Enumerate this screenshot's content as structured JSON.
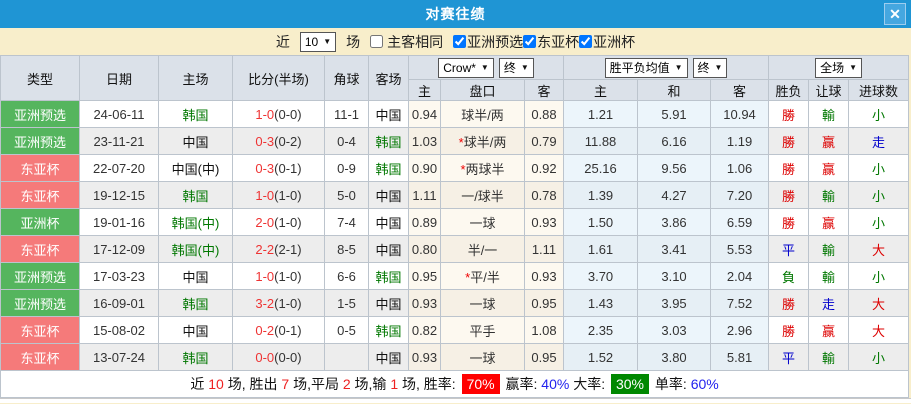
{
  "window": {
    "title": "对赛往绩",
    "close_label": "✕"
  },
  "filter": {
    "near_label": "近",
    "count_value": "10",
    "games_label": "场",
    "same_venue": {
      "label": "主客相同",
      "checked": false
    },
    "competitions": [
      {
        "label": "亚洲预选",
        "checked": true
      },
      {
        "label": "东亚杯",
        "checked": true
      },
      {
        "label": "亚洲杯",
        "checked": true
      }
    ]
  },
  "table": {
    "headers": {
      "type": "类型",
      "date": "日期",
      "home": "主场",
      "score": "比分(半场)",
      "corner": "角球",
      "away": "客场",
      "odds_company_select": "Crow*",
      "odds_stage_select": "终",
      "avg_select": "胜平负均值",
      "avg_stage_select": "终",
      "scope_select": "全场",
      "odds_home": "主",
      "odds_handicap": "盘口",
      "odds_away": "客",
      "avg_home": "主",
      "avg_draw": "和",
      "avg_away": "客",
      "result": "胜负",
      "handicap_result": "让球",
      "goals": "进球数"
    },
    "rows": [
      {
        "type": "亚洲预选",
        "type_color": "green",
        "date": "24-06-11",
        "home": "韩国",
        "home_color": "green",
        "score": "1-0",
        "half": "(0-0)",
        "corner": "11-1",
        "away": "中国",
        "away_color": "black",
        "odds_home": "0.94",
        "handicap_star": false,
        "handicap": "球半/两",
        "odds_away": "0.88",
        "avg_home": "1.21",
        "avg_draw": "5.91",
        "avg_away": "10.94",
        "result": "勝",
        "result_color": "red",
        "handicap_result": "輸",
        "handicap_result_color": "green",
        "goals": "小",
        "goals_color": "green"
      },
      {
        "type": "亚洲预选",
        "type_color": "green",
        "date": "23-11-21",
        "home": "中国",
        "home_color": "black",
        "score": "0-3",
        "half": "(0-2)",
        "corner": "0-4",
        "away": "韩国",
        "away_color": "green",
        "odds_home": "1.03",
        "handicap_star": true,
        "handicap": "球半/两",
        "odds_away": "0.79",
        "avg_home": "11.88",
        "avg_draw": "6.16",
        "avg_away": "1.19",
        "result": "勝",
        "result_color": "red",
        "handicap_result": "赢",
        "handicap_result_color": "red",
        "goals": "走",
        "goals_color": "blue"
      },
      {
        "type": "东亚杯",
        "type_color": "red",
        "date": "22-07-20",
        "home": "中国(中)",
        "home_color": "black",
        "score": "0-3",
        "half": "(0-1)",
        "corner": "0-9",
        "away": "韩国",
        "away_color": "green",
        "odds_home": "0.90",
        "handicap_star": true,
        "handicap": "两球半",
        "odds_away": "0.92",
        "avg_home": "25.16",
        "avg_draw": "9.56",
        "avg_away": "1.06",
        "result": "勝",
        "result_color": "red",
        "handicap_result": "赢",
        "handicap_result_color": "red",
        "goals": "小",
        "goals_color": "green"
      },
      {
        "type": "东亚杯",
        "type_color": "red",
        "date": "19-12-15",
        "home": "韩国",
        "home_color": "green",
        "score": "1-0",
        "half": "(1-0)",
        "corner": "5-0",
        "away": "中国",
        "away_color": "black",
        "odds_home": "1.11",
        "handicap_star": false,
        "handicap": "一/球半",
        "odds_away": "0.78",
        "avg_home": "1.39",
        "avg_draw": "4.27",
        "avg_away": "7.20",
        "result": "勝",
        "result_color": "red",
        "handicap_result": "輸",
        "handicap_result_color": "green",
        "goals": "小",
        "goals_color": "green"
      },
      {
        "type": "亚洲杯",
        "type_color": "green",
        "date": "19-01-16",
        "home": "韩国(中)",
        "home_color": "green",
        "score": "2-0",
        "half": "(1-0)",
        "corner": "7-4",
        "away": "中国",
        "away_color": "black",
        "odds_home": "0.89",
        "handicap_star": false,
        "handicap": "一球",
        "odds_away": "0.93",
        "avg_home": "1.50",
        "avg_draw": "3.86",
        "avg_away": "6.59",
        "result": "勝",
        "result_color": "red",
        "handicap_result": "赢",
        "handicap_result_color": "red",
        "goals": "小",
        "goals_color": "green"
      },
      {
        "type": "东亚杯",
        "type_color": "red",
        "date": "17-12-09",
        "home": "韩国(中)",
        "home_color": "green",
        "score": "2-2",
        "half": "(2-1)",
        "corner": "8-5",
        "away": "中国",
        "away_color": "black",
        "odds_home": "0.80",
        "handicap_star": false,
        "handicap": "半/一",
        "odds_away": "1.11",
        "avg_home": "1.61",
        "avg_draw": "3.41",
        "avg_away": "5.53",
        "result": "平",
        "result_color": "blue",
        "handicap_result": "輸",
        "handicap_result_color": "green",
        "goals": "大",
        "goals_color": "red"
      },
      {
        "type": "亚洲预选",
        "type_color": "green",
        "date": "17-03-23",
        "home": "中国",
        "home_color": "black",
        "score": "1-0",
        "half": "(1-0)",
        "corner": "6-6",
        "away": "韩国",
        "away_color": "green",
        "odds_home": "0.95",
        "handicap_star": true,
        "handicap": "平/半",
        "odds_away": "0.93",
        "avg_home": "3.70",
        "avg_draw": "3.10",
        "avg_away": "2.04",
        "result": "負",
        "result_color": "green",
        "handicap_result": "輸",
        "handicap_result_color": "green",
        "goals": "小",
        "goals_color": "green"
      },
      {
        "type": "亚洲预选",
        "type_color": "green",
        "date": "16-09-01",
        "home": "韩国",
        "home_color": "green",
        "score": "3-2",
        "half": "(1-0)",
        "corner": "1-5",
        "away": "中国",
        "away_color": "black",
        "odds_home": "0.93",
        "handicap_star": false,
        "handicap": "一球",
        "odds_away": "0.95",
        "avg_home": "1.43",
        "avg_draw": "3.95",
        "avg_away": "7.52",
        "result": "勝",
        "result_color": "red",
        "handicap_result": "走",
        "handicap_result_color": "blue",
        "goals": "大",
        "goals_color": "red"
      },
      {
        "type": "东亚杯",
        "type_color": "red",
        "date": "15-08-02",
        "home": "中国",
        "home_color": "black",
        "score": "0-2",
        "half": "(0-1)",
        "corner": "0-5",
        "away": "韩国",
        "away_color": "green",
        "odds_home": "0.82",
        "handicap_star": false,
        "handicap": "平手",
        "odds_away": "1.08",
        "avg_home": "2.35",
        "avg_draw": "3.03",
        "avg_away": "2.96",
        "result": "勝",
        "result_color": "red",
        "handicap_result": "赢",
        "handicap_result_color": "red",
        "goals": "大",
        "goals_color": "red"
      },
      {
        "type": "东亚杯",
        "type_color": "red",
        "date": "13-07-24",
        "home": "韩国",
        "home_color": "green",
        "score": "0-0",
        "half": "(0-0)",
        "corner": "",
        "away": "中国",
        "away_color": "black",
        "odds_home": "0.93",
        "handicap_star": false,
        "handicap": "一球",
        "odds_away": "0.95",
        "avg_home": "1.52",
        "avg_draw": "3.80",
        "avg_away": "5.81",
        "result": "平",
        "result_color": "blue",
        "handicap_result": "輸",
        "handicap_result_color": "green",
        "goals": "小",
        "goals_color": "green"
      }
    ]
  },
  "summary": {
    "segments": [
      {
        "text": "近 ",
        "cls": "plain"
      },
      {
        "text": "10",
        "cls": "red"
      },
      {
        "text": " 场, 胜出 ",
        "cls": "plain"
      },
      {
        "text": "7",
        "cls": "red"
      },
      {
        "text": " 场,平局 ",
        "cls": "plain"
      },
      {
        "text": "2",
        "cls": "red"
      },
      {
        "text": " 场,输 ",
        "cls": "plain"
      },
      {
        "text": "1",
        "cls": "red"
      },
      {
        "text": " 场, 胜率: ",
        "cls": "plain"
      },
      {
        "text": "70%",
        "cls": "badge-red"
      },
      {
        "text": " 赢率: ",
        "cls": "plain"
      },
      {
        "text": "40%",
        "cls": "blue"
      },
      {
        "text": " 大率: ",
        "cls": "plain"
      },
      {
        "text": "30%",
        "cls": "badge-green"
      },
      {
        "text": " 单率: ",
        "cls": "plain"
      },
      {
        "text": "60%",
        "cls": "blue"
      }
    ]
  },
  "colors": {
    "titlebar": "#1f95d4",
    "filter_bg": "#f8eecb",
    "header_bg": "#dbe1e9",
    "badge_green": "#55b55e",
    "badge_red": "#f57a7a",
    "odds_bg": "#fdf9f0",
    "avg_bg": "#ecf5fb",
    "win_red": "#dd0000",
    "lose_green": "#007700",
    "draw_blue": "#0000cc"
  }
}
